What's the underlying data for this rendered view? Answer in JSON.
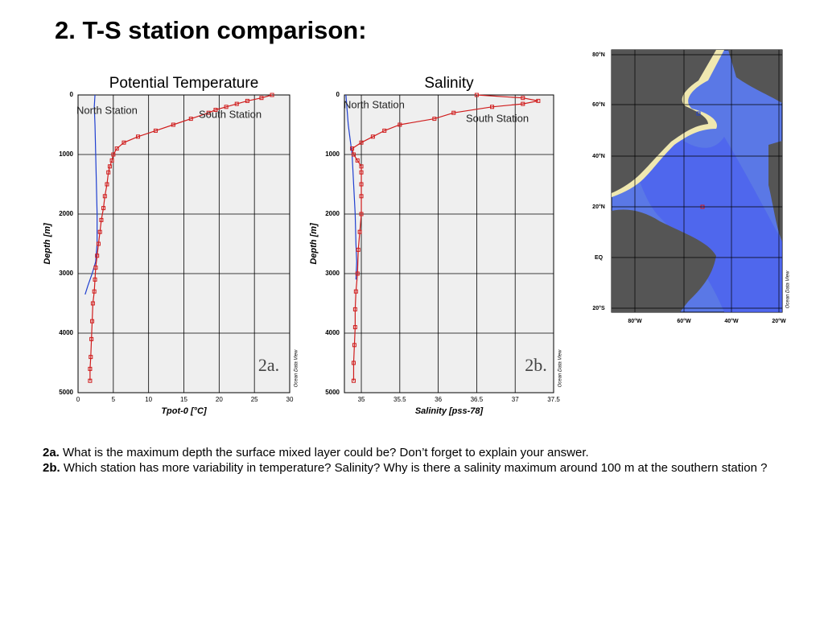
{
  "title": "2. T-S station comparison:",
  "chart_data": [
    {
      "type": "line",
      "title": "Potential Temperature",
      "xlabel": "Tpot-0 [°C]",
      "ylabel": "Depth [m]",
      "panel_label": "2a.",
      "credit": "Ocean Data View",
      "xlim": [
        0,
        30
      ],
      "xticks": [
        0,
        5,
        10,
        15,
        20,
        25,
        30
      ],
      "ylim": [
        0,
        5000
      ],
      "yticks": [
        0,
        1000,
        2000,
        3000,
        4000,
        5000
      ],
      "y_inverted": true,
      "grid": true,
      "series": [
        {
          "name": "North Station",
          "color": "#1f3fd0",
          "marker": "none",
          "depth": [
            0,
            200,
            500,
            1000,
            1500,
            2000,
            2500,
            2800,
            3000,
            3200,
            3350
          ],
          "values": [
            2.4,
            2.3,
            2.4,
            2.5,
            2.6,
            2.7,
            2.7,
            2.5,
            2.0,
            1.4,
            1.0
          ]
        },
        {
          "name": "South Station",
          "color": "#d01c1c",
          "marker": "square",
          "depth": [
            0,
            50,
            100,
            150,
            200,
            250,
            300,
            400,
            500,
            600,
            700,
            800,
            900,
            1000,
            1100,
            1200,
            1300,
            1500,
            1700,
            1900,
            2100,
            2300,
            2500,
            2700,
            2900,
            3100,
            3300,
            3500,
            3800,
            4100,
            4400,
            4600,
            4800
          ],
          "values": [
            27.5,
            26,
            24,
            22.5,
            21,
            19.5,
            18.5,
            16,
            13.5,
            11,
            8.5,
            6.5,
            5.5,
            5,
            4.8,
            4.5,
            4.3,
            4.1,
            3.8,
            3.6,
            3.3,
            3.1,
            2.9,
            2.7,
            2.5,
            2.4,
            2.3,
            2.1,
            2.0,
            1.9,
            1.8,
            1.7,
            1.7
          ]
        }
      ]
    },
    {
      "type": "line",
      "title": "Salinity",
      "xlabel": "Salinity [pss-78]",
      "ylabel": "Depth [m]",
      "panel_label": "2b.",
      "credit": "Ocean Data View",
      "xlim": [
        34.78,
        37.5
      ],
      "xticks": [
        35,
        35.5,
        36,
        36.5,
        37,
        37.5
      ],
      "ylim": [
        0,
        5000
      ],
      "yticks": [
        0,
        1000,
        2000,
        3000,
        4000,
        5000
      ],
      "y_inverted": true,
      "grid": true,
      "series": [
        {
          "name": "North Station",
          "color": "#1f3fd0",
          "marker": "none",
          "depth": [
            0,
            500,
            1000,
            1500,
            2000,
            2500,
            2800,
            3100
          ],
          "values": [
            34.8,
            34.83,
            34.88,
            34.9,
            34.92,
            34.93,
            34.94,
            34.93
          ]
        },
        {
          "name": "South Station",
          "color": "#d01c1c",
          "marker": "square",
          "depth": [
            0,
            50,
            100,
            150,
            200,
            300,
            400,
            500,
            600,
            700,
            800,
            900,
            1000,
            1100,
            1200,
            1300,
            1500,
            1700,
            2000,
            2300,
            2600,
            3000,
            3300,
            3600,
            3900,
            4200,
            4500,
            4800
          ],
          "values": [
            36.5,
            37.1,
            37.3,
            37.1,
            36.7,
            36.2,
            35.95,
            35.5,
            35.3,
            35.15,
            35.0,
            34.88,
            34.9,
            34.95,
            35.0,
            35.0,
            35.0,
            35.0,
            35.0,
            34.98,
            34.96,
            34.95,
            34.93,
            34.92,
            34.92,
            34.91,
            34.9,
            34.9
          ]
        }
      ]
    }
  ],
  "map": {
    "lat_labels": [
      "80°N",
      "60°N",
      "40°N",
      "20°N",
      "EQ",
      "20°S"
    ],
    "lon_labels": [
      "80°W",
      "60°W",
      "40°W",
      "20°W"
    ],
    "credit": "Ocean Data View"
  },
  "questions": [
    {
      "label": "2a.",
      "text": " What is the maximum depth the surface mixed layer could be? Don’t forget to explain your answer."
    },
    {
      "label": "2b.",
      "text": " Which station has more variability in temperature? Salinity? Why is there a salinity maximum around 100 m at the southern station ?"
    }
  ]
}
